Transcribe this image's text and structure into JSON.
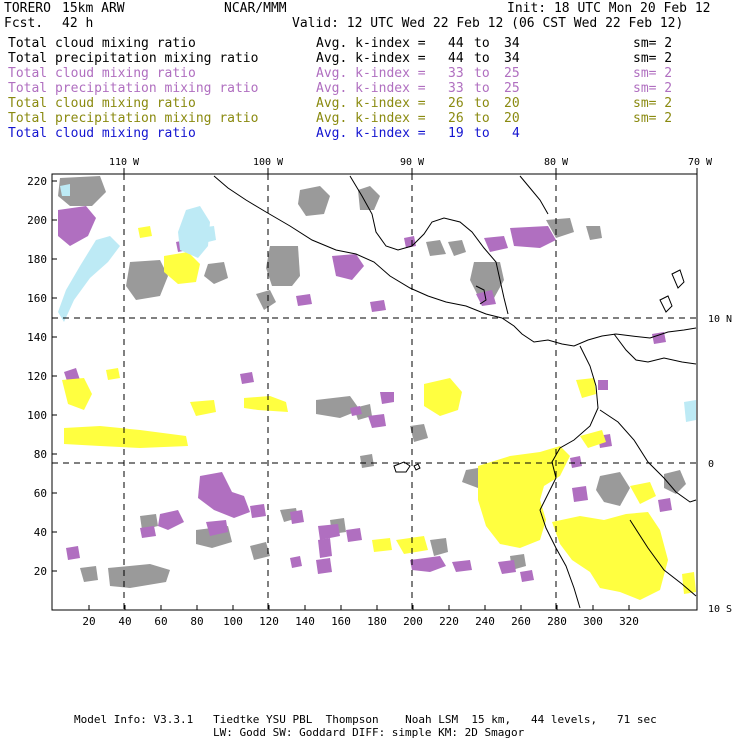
{
  "header": {
    "model": "TORERO",
    "resolution": "15km ARW",
    "org": "NCAR/MMM",
    "init": "Init: 18 UTC Mon 20 Feb 12",
    "fcst_label": "Fcst.",
    "fcst_value": "42 h",
    "valid": "Valid: 12 UTC Wed 22 Feb 12 (06 CST Wed 22 Feb 12)"
  },
  "legend_rows": [
    {
      "field": "Total cloud mixing ratio",
      "stat": "Avg. k-index =",
      "from": "44",
      "to_word": "to",
      "to": "34",
      "sm": "sm= 2",
      "color": "#000000"
    },
    {
      "field": "Total precipitation mixing ratio",
      "stat": "Avg. k-index =",
      "from": "44",
      "to_word": "to",
      "to": "34",
      "sm": "sm= 2",
      "color": "#000000"
    },
    {
      "field": "Total cloud mixing ratio",
      "stat": "Avg. k-index =",
      "from": "33",
      "to_word": "to",
      "to": "25",
      "sm": "sm= 2",
      "color": "#b06fc0"
    },
    {
      "field": "Total precipitation mixing ratio",
      "stat": "Avg. k-index =",
      "from": "33",
      "to_word": "to",
      "to": "25",
      "sm": "sm= 2",
      "color": "#b06fc0"
    },
    {
      "field": "Total cloud mixing ratio",
      "stat": "Avg. k-index =",
      "from": "26",
      "to_word": "to",
      "to": "20",
      "sm": "sm= 2",
      "color": "#8a8a10"
    },
    {
      "field": "Total precipitation mixing ratio",
      "stat": "Avg. k-index =",
      "from": "26",
      "to_word": "to",
      "to": "20",
      "sm": "sm= 2",
      "color": "#8a8a10"
    },
    {
      "field": "Total cloud mixing ratio",
      "stat": "Avg. k-index =",
      "from": "19",
      "to_word": "to",
      "to": "4",
      "sm": "",
      "color": "#1414d0"
    }
  ],
  "axes": {
    "top_lon_labels": [
      "110 W",
      "100 W",
      "90 W",
      "80 W",
      "70 W"
    ],
    "right_lat_labels": [
      "10 N",
      "0",
      "10 S"
    ],
    "left_ticks": [
      "220",
      "200",
      "180",
      "160",
      "140",
      "120",
      "100",
      "80",
      "60",
      "40",
      "20"
    ],
    "bottom_ticks": [
      "20",
      "40",
      "60",
      "80",
      "100",
      "120",
      "140",
      "160",
      "180",
      "200",
      "220",
      "240",
      "260",
      "280",
      "300",
      "320"
    ]
  },
  "colors": {
    "gray": "#9a9a9a",
    "purple": "#b06fc0",
    "yellow": "#ffff40",
    "lightblue": "#bdeaf5",
    "coast": "#000000"
  },
  "footer": {
    "line1": "Model Info: V3.3.1   Tiedtke YSU PBL  Thompson    Noah LSM  15 km,   44 levels,   71 sec",
    "line2": "LW: Godd SW: Goddard DIFF: simple KM: 2D Smagor"
  }
}
